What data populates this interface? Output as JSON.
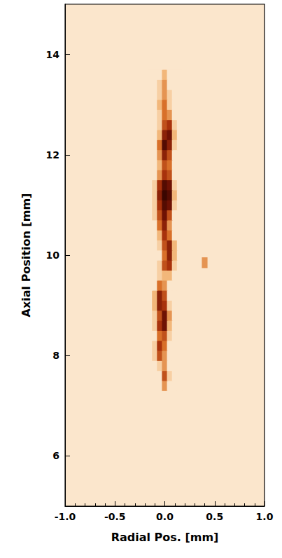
{
  "chart_data": {
    "type": "heatmap",
    "x_label": "Radial Pos. [mm]",
    "y_label": "Axial Position [mm]",
    "xlim": [
      -1,
      1
    ],
    "xticks": [
      {
        "value": -1,
        "label": "-1.0"
      },
      {
        "value": -0.5,
        "label": "-0.5"
      },
      {
        "value": 0,
        "label": "0.0"
      },
      {
        "value": 0.5,
        "label": "0.5"
      },
      {
        "value": 1,
        "label": "1.0"
      }
    ],
    "ylim": [
      5,
      15
    ],
    "yticks": [
      6,
      8,
      10,
      12,
      14
    ],
    "zlim": [
      0,
      1
    ],
    "x": [
      -0.15,
      -0.1,
      -0.05,
      0,
      0.05,
      0.1,
      0.15
    ],
    "y": [
      7.4,
      7.6,
      7.8,
      8.0,
      8.2,
      8.4,
      8.6,
      8.8,
      9.0,
      9.2,
      9.4,
      9.6,
      9.8,
      10.0,
      10.2,
      10.4,
      10.6,
      10.8,
      11.0,
      11.2,
      11.4,
      11.6,
      11.8,
      12.0,
      12.2,
      12.4,
      12.6,
      12.8,
      13.0,
      13.2,
      13.4,
      13.6,
      13.8
    ],
    "values": [
      [
        0,
        0,
        0,
        0.3,
        0,
        0,
        0
      ],
      [
        0,
        0,
        0,
        0.5,
        0.1,
        0,
        0
      ],
      [
        0,
        0,
        0.1,
        0.3,
        0,
        0,
        0
      ],
      [
        0,
        0.1,
        0.5,
        0.3,
        0,
        0,
        0
      ],
      [
        0,
        0.1,
        0.6,
        0.4,
        0,
        0,
        0
      ],
      [
        0,
        0,
        0.4,
        0.5,
        0.1,
        0,
        0
      ],
      [
        0,
        0.1,
        0.6,
        0.8,
        0.2,
        0,
        0
      ],
      [
        0,
        0.1,
        0.5,
        0.8,
        0.3,
        0,
        0
      ],
      [
        0,
        0.2,
        0.7,
        0.6,
        0.1,
        0,
        0
      ],
      [
        0,
        0.2,
        0.7,
        0.5,
        0,
        0,
        0
      ],
      [
        0,
        0,
        0.4,
        0.3,
        0,
        0,
        0
      ],
      [
        0,
        0,
        0.1,
        0.2,
        0.2,
        0,
        0
      ],
      [
        0,
        0,
        0.1,
        0.5,
        0.6,
        0.1,
        0
      ],
      [
        0,
        0,
        0,
        0.4,
        0.7,
        0.2,
        0
      ],
      [
        0,
        0,
        0.1,
        0.5,
        0.7,
        0.2,
        0
      ],
      [
        0,
        0,
        0.2,
        0.6,
        0.4,
        0,
        0
      ],
      [
        0,
        0,
        0.4,
        0.7,
        0.3,
        0,
        0
      ],
      [
        0,
        0.1,
        0.5,
        0.8,
        0.5,
        0,
        0
      ],
      [
        0,
        0.1,
        0.6,
        0.9,
        0.8,
        0.1,
        0
      ],
      [
        0,
        0.1,
        0.7,
        1.0,
        0.9,
        0.2,
        0
      ],
      [
        0,
        0.1,
        0.6,
        0.9,
        0.8,
        0.1,
        0
      ],
      [
        0,
        0,
        0.3,
        0.6,
        0.5,
        0,
        0
      ],
      [
        0,
        0,
        0.2,
        0.5,
        0.4,
        0,
        0
      ],
      [
        0,
        0,
        0.3,
        0.7,
        0.5,
        0,
        0
      ],
      [
        0,
        0,
        0.4,
        0.9,
        0.7,
        0.1,
        0
      ],
      [
        0,
        0,
        0.2,
        0.7,
        0.8,
        0.2,
        0
      ],
      [
        0,
        0,
        0.1,
        0.5,
        0.6,
        0.1,
        0
      ],
      [
        0,
        0,
        0.1,
        0.4,
        0.3,
        0,
        0
      ],
      [
        0,
        0,
        0.2,
        0.4,
        0.1,
        0,
        0
      ],
      [
        0,
        0,
        0.1,
        0.3,
        0.1,
        0,
        0
      ],
      [
        0,
        0,
        0.1,
        0.3,
        0,
        0,
        0
      ],
      [
        0,
        0,
        0,
        0.2,
        0,
        0,
        0
      ],
      [
        0,
        0,
        0,
        0,
        0,
        0,
        0
      ]
    ],
    "spots": [
      {
        "x": 0.4,
        "y": 9.85,
        "value": 0.3
      }
    ]
  }
}
